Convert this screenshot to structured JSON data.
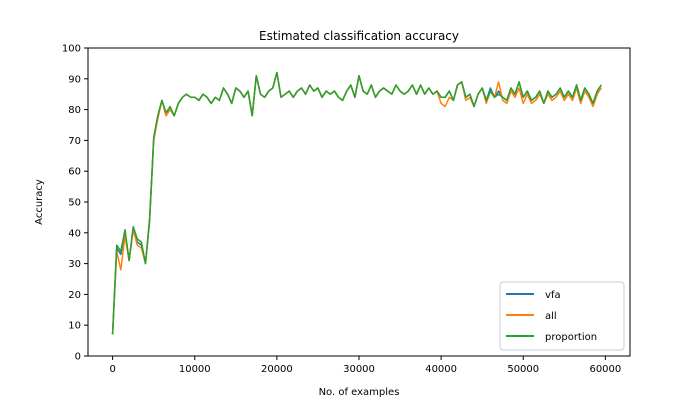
{
  "chart_data": {
    "type": "line",
    "title": "Estimated classification accuracy",
    "xlabel": "No. of examples",
    "ylabel": "Accuracy",
    "xlim": [
      -3000,
      63000
    ],
    "ylim": [
      0,
      100
    ],
    "xticks": [
      0,
      10000,
      20000,
      30000,
      40000,
      50000,
      60000
    ],
    "yticks": [
      0,
      10,
      20,
      30,
      40,
      50,
      60,
      70,
      80,
      90,
      100
    ],
    "grid": false,
    "legend_position": "lower-right",
    "colors": {
      "vfa": "#1f77b4",
      "all": "#ff7f0e",
      "proportion": "#2ca02c"
    },
    "x": [
      0,
      500,
      1000,
      1500,
      2000,
      2500,
      3000,
      3500,
      4000,
      4500,
      5000,
      5500,
      6000,
      6500,
      7000,
      7500,
      8000,
      8500,
      9000,
      9500,
      10000,
      10500,
      11000,
      11500,
      12000,
      12500,
      13000,
      13500,
      14000,
      14500,
      15000,
      15500,
      16000,
      16500,
      17000,
      17500,
      18000,
      18500,
      19000,
      19500,
      20000,
      20500,
      21000,
      21500,
      22000,
      22500,
      23000,
      23500,
      24000,
      24500,
      25000,
      25500,
      26000,
      26500,
      27000,
      27500,
      28000,
      28500,
      29000,
      29500,
      30000,
      30500,
      31000,
      31500,
      32000,
      32500,
      33000,
      33500,
      34000,
      34500,
      35000,
      35500,
      36000,
      36500,
      37000,
      37500,
      38000,
      38500,
      39000,
      39500,
      40000,
      40500,
      41000,
      41500,
      42000,
      42500,
      43000,
      43500,
      44000,
      44500,
      45000,
      45500,
      46000,
      46500,
      47000,
      47500,
      48000,
      48500,
      49000,
      49500,
      50000,
      50500,
      51000,
      51500,
      52000,
      52500,
      53000,
      53500,
      54000,
      54500,
      55000,
      55500,
      56000,
      56500,
      57000,
      57500,
      58000,
      58500,
      59000,
      59500
    ],
    "series": [
      {
        "name": "vfa",
        "values": [
          7,
          35,
          33,
          40,
          31,
          41,
          37,
          36,
          30,
          44,
          70,
          78,
          83,
          79,
          80,
          78,
          82,
          84,
          85,
          84,
          84,
          83,
          85,
          84,
          82,
          84,
          83,
          87,
          85,
          82,
          87,
          86,
          84,
          86,
          78,
          91,
          85,
          84,
          86,
          87,
          92,
          84,
          85,
          86,
          84,
          86,
          87,
          85,
          88,
          86,
          87,
          84,
          86,
          85,
          86,
          84,
          83,
          86,
          88,
          84,
          91,
          86,
          85,
          88,
          84,
          86,
          87,
          86,
          85,
          88,
          86,
          85,
          86,
          88,
          85,
          88,
          85,
          87,
          85,
          86,
          84,
          84,
          86,
          83,
          88,
          89,
          84,
          85,
          81,
          85,
          87,
          83,
          87,
          84,
          86,
          84,
          83,
          87,
          85,
          89,
          84,
          86,
          83,
          84,
          86,
          82,
          86,
          84,
          85,
          87,
          84,
          86,
          84,
          88,
          83,
          87,
          85,
          82,
          86,
          88
        ]
      },
      {
        "name": "all",
        "values": [
          7,
          34,
          28,
          39,
          31,
          41,
          36,
          35,
          30,
          45,
          70,
          77,
          83,
          78,
          80,
          78,
          82,
          84,
          85,
          84,
          84,
          83,
          85,
          84,
          82,
          84,
          83,
          87,
          85,
          82,
          87,
          86,
          84,
          86,
          78,
          91,
          85,
          84,
          86,
          87,
          92,
          84,
          85,
          86,
          84,
          86,
          87,
          85,
          88,
          86,
          87,
          84,
          86,
          85,
          86,
          84,
          83,
          86,
          88,
          84,
          91,
          86,
          85,
          88,
          84,
          86,
          87,
          86,
          85,
          88,
          86,
          85,
          86,
          88,
          85,
          88,
          85,
          87,
          85,
          86,
          82,
          81,
          84,
          83,
          88,
          89,
          83,
          84,
          81,
          85,
          87,
          82,
          86,
          84,
          89,
          83,
          82,
          86,
          84,
          87,
          82,
          85,
          82,
          83,
          85,
          82,
          85,
          83,
          84,
          86,
          83,
          85,
          83,
          87,
          82,
          86,
          84,
          81,
          85,
          87
        ]
      },
      {
        "name": "proportion",
        "values": [
          7,
          36,
          34,
          41,
          31,
          42,
          38,
          37,
          30,
          44,
          71,
          78,
          83,
          79,
          81,
          78,
          82,
          84,
          85,
          84,
          84,
          83,
          85,
          84,
          82,
          84,
          83,
          87,
          85,
          82,
          87,
          86,
          84,
          86,
          78,
          91,
          85,
          84,
          86,
          87,
          92,
          84,
          85,
          86,
          84,
          86,
          87,
          85,
          88,
          86,
          87,
          84,
          86,
          85,
          86,
          84,
          83,
          86,
          88,
          84,
          91,
          86,
          85,
          88,
          84,
          86,
          87,
          86,
          85,
          88,
          86,
          85,
          86,
          88,
          85,
          88,
          85,
          87,
          85,
          86,
          84,
          84,
          86,
          83,
          88,
          89,
          84,
          85,
          81,
          85,
          87,
          83,
          86,
          84,
          85,
          84,
          83,
          87,
          85,
          89,
          84,
          86,
          83,
          84,
          86,
          82,
          86,
          84,
          85,
          87,
          84,
          86,
          84,
          88,
          83,
          87,
          85,
          82,
          86,
          88
        ]
      }
    ]
  }
}
